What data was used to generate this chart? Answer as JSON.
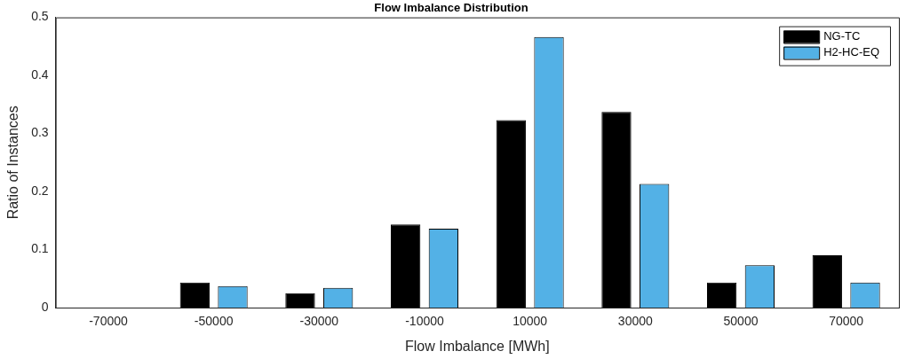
{
  "chart_data": {
    "type": "bar",
    "title": "Flow Imbalance Distribution",
    "xlabel": "Flow Imbalance [MWh]",
    "ylabel": "Ratio of Instances",
    "categories": [
      "-70000",
      "-50000",
      "-30000",
      "-10000",
      "10000",
      "30000",
      "50000",
      "70000"
    ],
    "series": [
      {
        "name": "NG-TC",
        "color": "#000000",
        "values": [
          0,
          0.043,
          0.025,
          0.143,
          0.323,
          0.337,
          0.043,
          0.09
        ]
      },
      {
        "name": "H2-HC-EQ",
        "color": "#53b1e6",
        "values": [
          0,
          0.037,
          0.034,
          0.136,
          0.466,
          0.213,
          0.073,
          0.043
        ]
      }
    ],
    "ylim": [
      0,
      0.5
    ],
    "yticks": [
      0,
      0.1,
      0.2,
      0.3,
      0.4,
      0.5
    ],
    "grid": false,
    "legend": "top right"
  }
}
